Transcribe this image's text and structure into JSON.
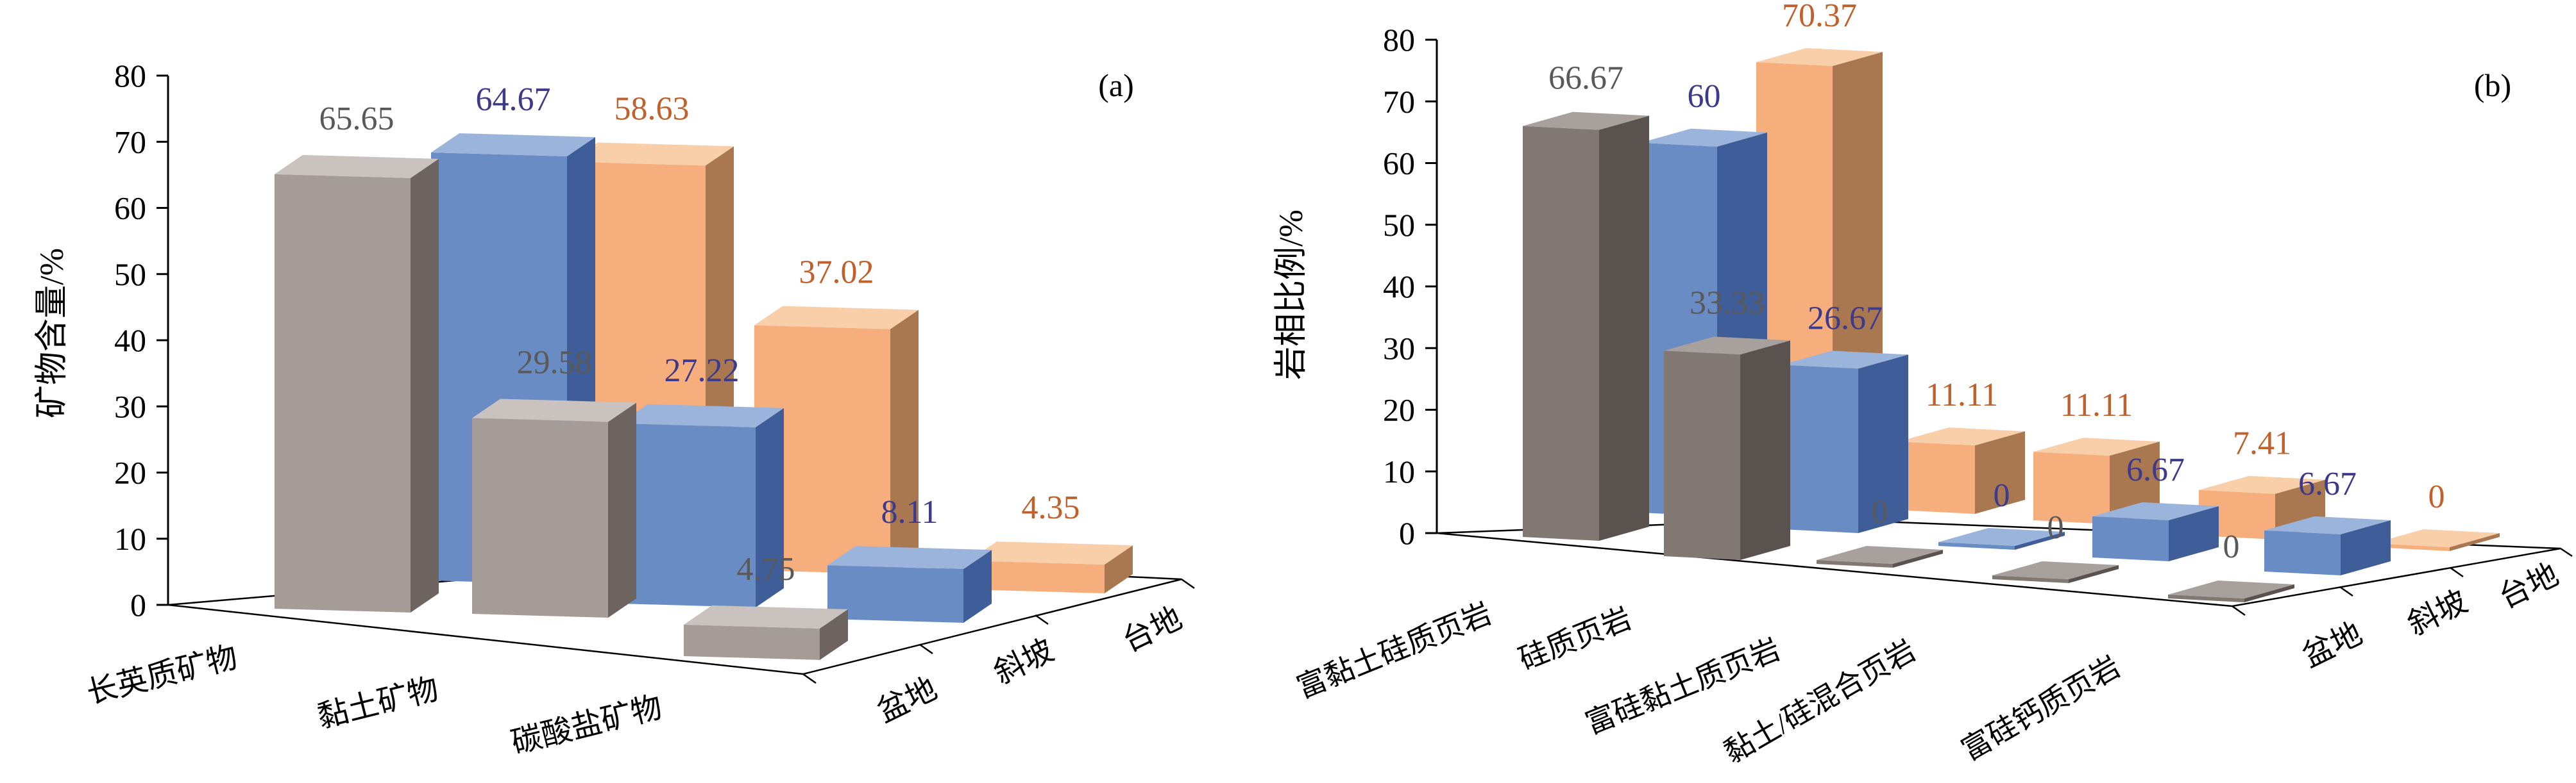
{
  "chart_data": [
    {
      "type": "bar",
      "panel": "(a)",
      "ylabel": "矿物含量/%",
      "ylim": [
        0,
        80
      ],
      "yticks": [
        "0",
        "10",
        "20",
        "30",
        "40",
        "50",
        "60",
        "70",
        "80"
      ],
      "categories": [
        "长英质矿物",
        "黏土矿物",
        "碳酸盐矿物"
      ],
      "series": [
        {
          "name": "盆地",
          "values": [
            65.65,
            29.58,
            4.75
          ],
          "value_labels": [
            "65.65",
            "29.58",
            "4.75"
          ]
        },
        {
          "name": "斜坡",
          "values": [
            64.67,
            27.22,
            8.11
          ],
          "value_labels": [
            "64.67",
            "27.22",
            "8.11"
          ]
        },
        {
          "name": "台地",
          "values": [
            58.63,
            37.02,
            4.35
          ],
          "value_labels": [
            "58.63",
            "37.02",
            "4.35"
          ]
        }
      ],
      "grid": false,
      "legend": "none"
    },
    {
      "type": "bar",
      "panel": "(b)",
      "ylabel": "岩相比例/%",
      "ylim": [
        0,
        80
      ],
      "yticks": [
        "0",
        "10",
        "20",
        "30",
        "40",
        "50",
        "60",
        "70",
        "80"
      ],
      "categories": [
        "富黏土硅质页岩",
        "硅质页岩",
        "富硅黏土质页岩",
        "黏土/硅混合页岩",
        "富硅钙质页岩"
      ],
      "series": [
        {
          "name": "盆地",
          "values": [
            66.67,
            33.33,
            0,
            0,
            0
          ],
          "value_labels": [
            "66.67",
            "33.33",
            "0",
            "0",
            "0"
          ]
        },
        {
          "name": "斜坡",
          "values": [
            60,
            26.67,
            0,
            6.67,
            6.67
          ],
          "value_labels": [
            "60",
            "26.67",
            "0",
            "6.67",
            "6.67"
          ]
        },
        {
          "name": "台地",
          "values": [
            70.37,
            11.11,
            11.11,
            7.41,
            0
          ],
          "value_labels": [
            "70.37",
            "11.11",
            "11.11",
            "7.41",
            "0"
          ]
        }
      ],
      "grid": false,
      "legend": "none"
    }
  ],
  "colors": {
    "盆地": {
      "front": "#a59c97",
      "side": "#6d645f",
      "top": "#c9c2be",
      "label": "#595959",
      "front_b": "#817874",
      "side_b": "#5a524e",
      "top_b": "#a8a09c"
    },
    "斜坡": {
      "front": "#6a8cc5",
      "side": "#3f5d99",
      "top": "#9bb4dc",
      "label": "#3d3a8c"
    },
    "台地": {
      "front": "#f5ae7c",
      "side": "#a97750",
      "top": "#f9cfa9",
      "label": "#c0602c"
    }
  }
}
